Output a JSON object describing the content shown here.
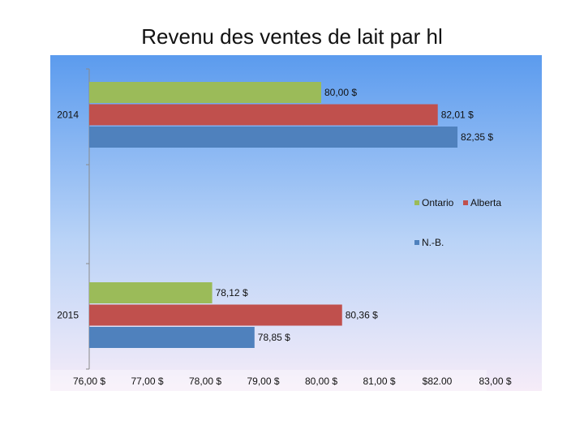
{
  "chart_data": {
    "type": "bar",
    "orientation": "horizontal",
    "title": "Revenu des ventes de lait par hl",
    "categories": [
      "2014",
      "2015"
    ],
    "series": [
      {
        "name": "Ontario",
        "color": "#9BBB59",
        "values": [
          80.0,
          78.12
        ],
        "labels": [
          "80,00 $",
          "78,12 $"
        ]
      },
      {
        "name": "Alberta",
        "color": "#C0504D",
        "values": [
          82.01,
          80.36
        ],
        "labels": [
          "82,01 $",
          "80,36 $"
        ]
      },
      {
        "name": "N.-B.",
        "color": "#4F81BD",
        "values": [
          82.35,
          78.85
        ],
        "labels": [
          "82,35 $",
          "78,85 $"
        ]
      }
    ],
    "xlim": [
      76,
      83
    ],
    "xticks": [
      "76,00 $",
      "77,00 $",
      "78,00 $",
      "79,00 $",
      "80,00 $",
      "81,00 $",
      "$82.00",
      "83,00 $"
    ],
    "legend_placement": "right",
    "grid": false,
    "background": "blue-to-lavender gradient"
  }
}
